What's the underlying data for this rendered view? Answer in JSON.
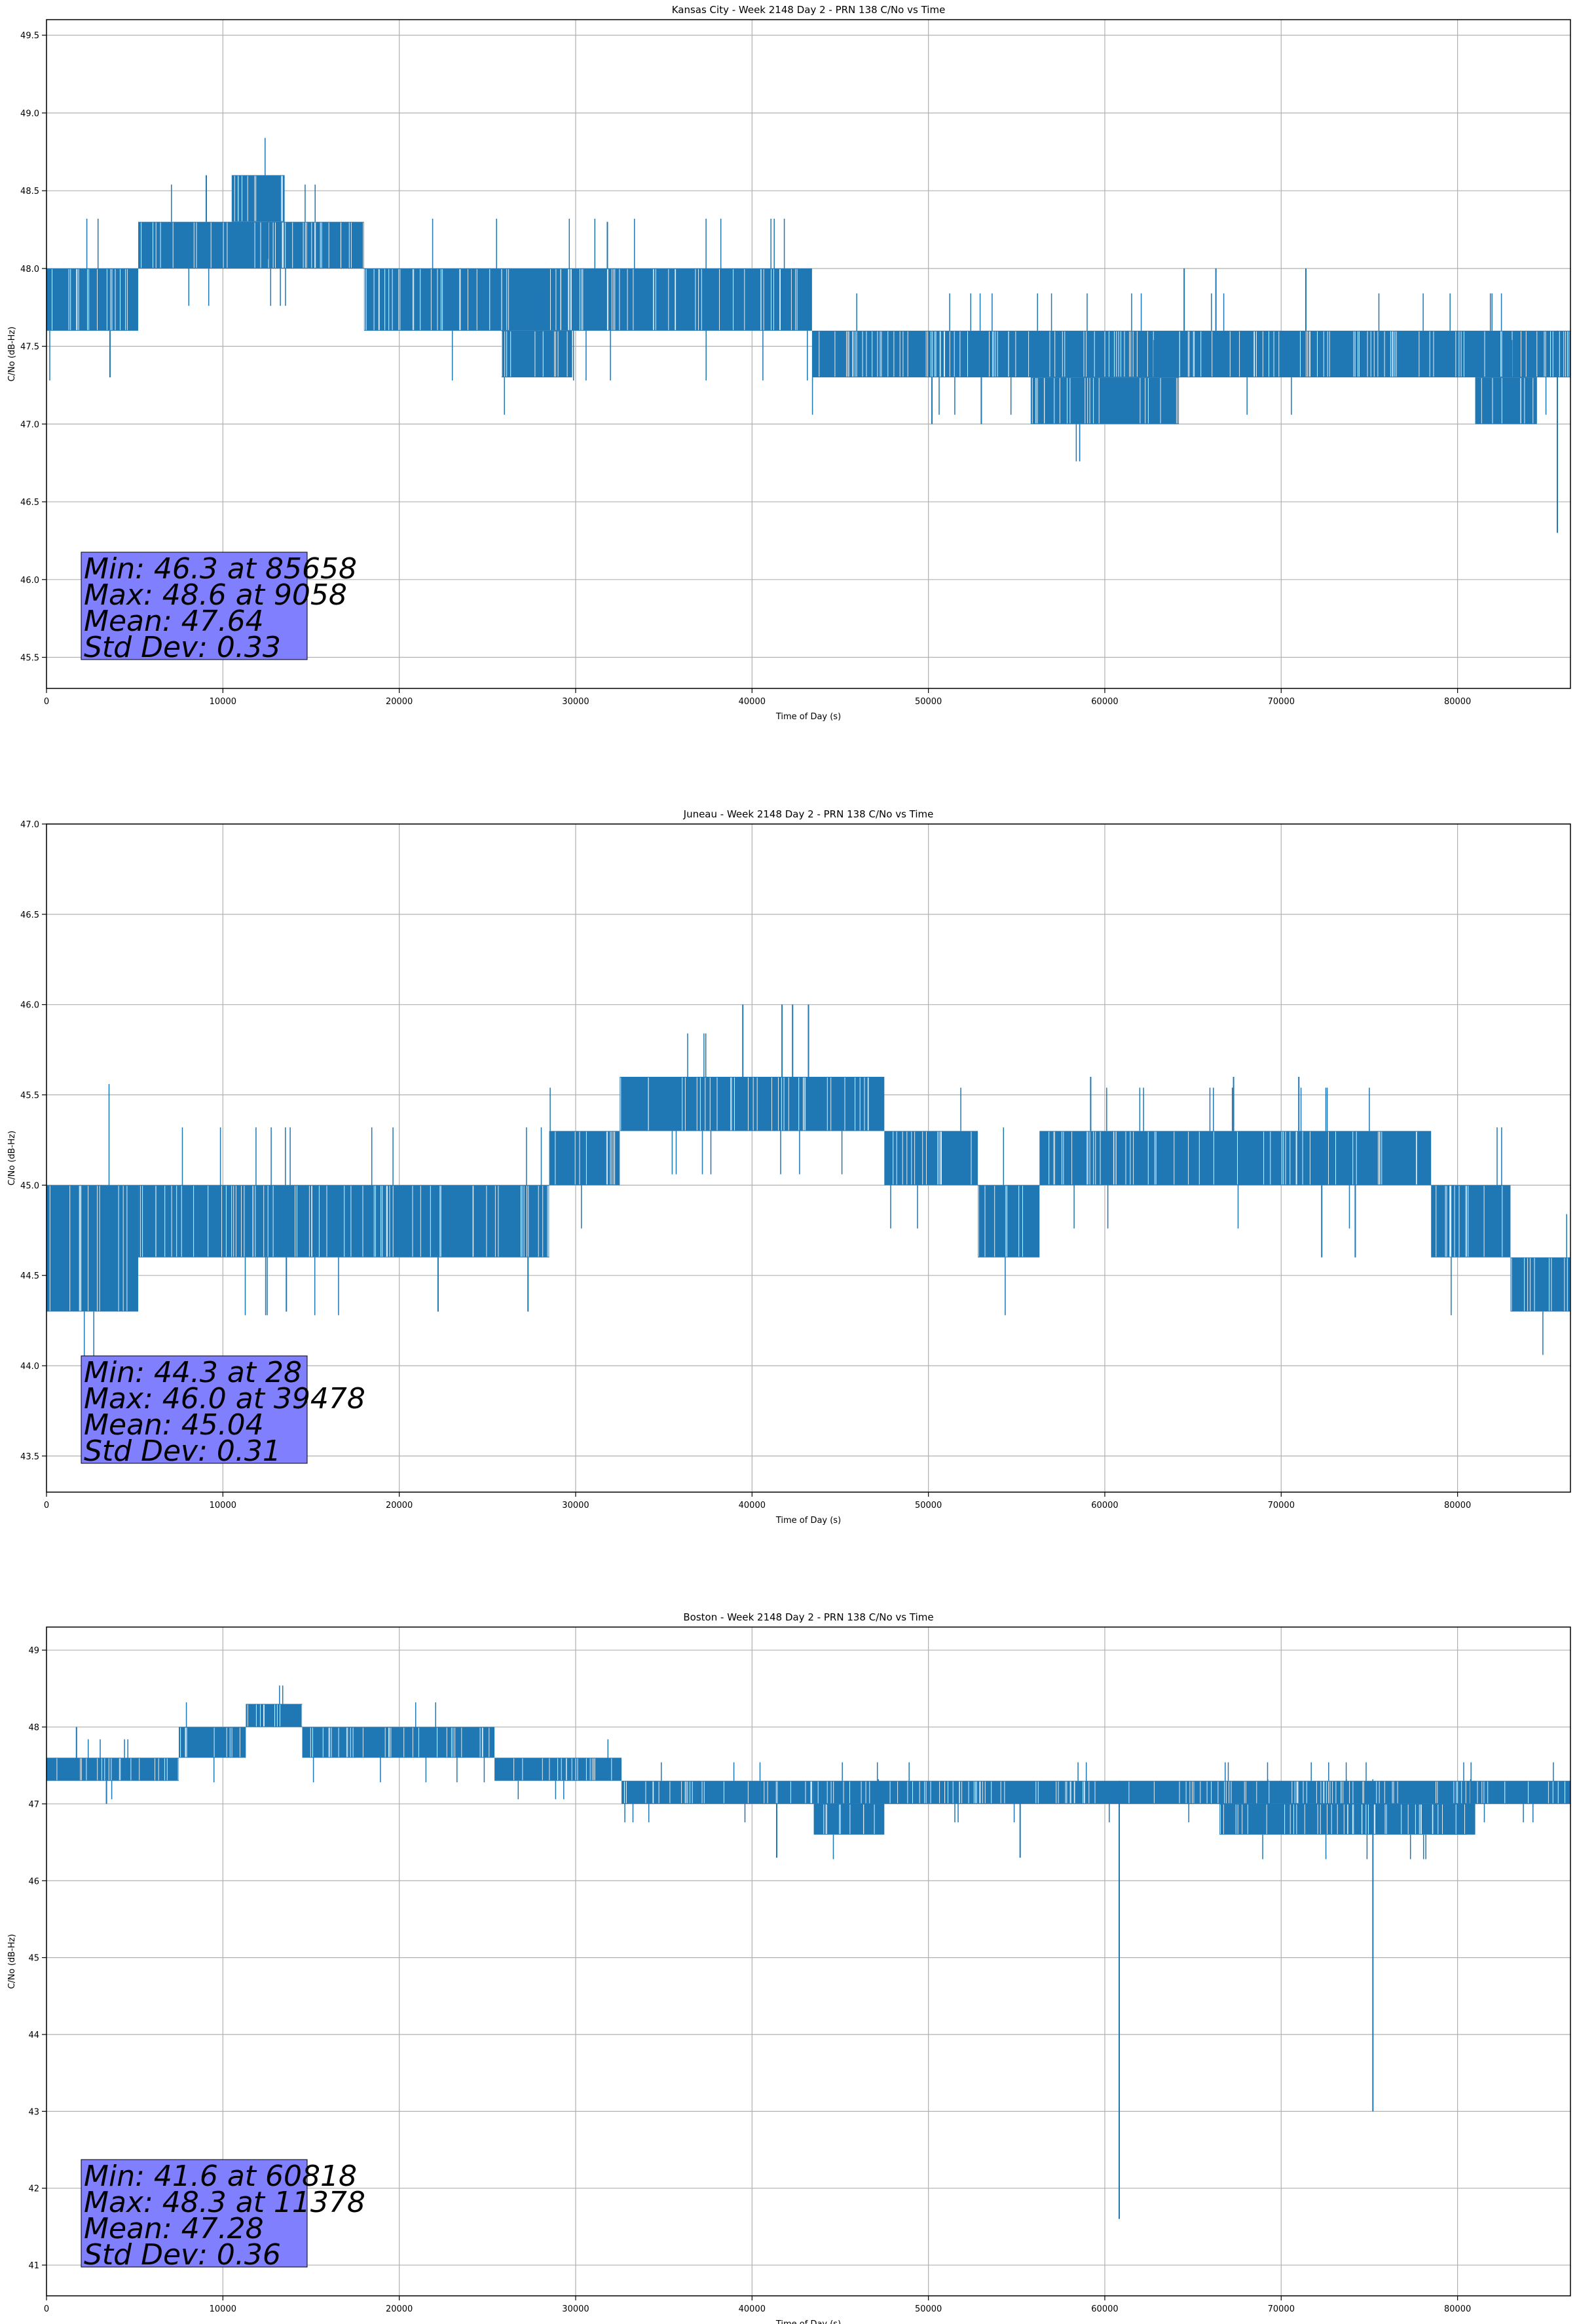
{
  "colors": {
    "series": "#1f77b4",
    "grid": "#b0b0b0",
    "stat_box": "#8080ff",
    "background": "#ffffff"
  },
  "chart_data": [
    {
      "type": "line",
      "title": "Kansas City - Week 2148 Day 2 - PRN 138 C/No vs Time",
      "xlabel": "Time of Day (s)",
      "ylabel": "C/No (dB-Hz)",
      "xlim": [
        0,
        86400
      ],
      "ylim": [
        45.3,
        49.6
      ],
      "xticks": [
        0,
        10000,
        20000,
        30000,
        40000,
        50000,
        60000,
        70000,
        80000
      ],
      "yticks": [
        45.5,
        46.0,
        46.5,
        47.0,
        47.5,
        48.0,
        48.5,
        49.0,
        49.5
      ],
      "ytick_format": 1,
      "grid": true,
      "series": [
        {
          "bands": [
            {
              "x0": 0,
              "x1": 5200,
              "lo": 47.6,
              "hi": 48.0
            },
            {
              "x0": 5200,
              "x1": 18000,
              "lo": 48.0,
              "hi": 48.3
            },
            {
              "x0": 10500,
              "x1": 13500,
              "lo": 48.3,
              "hi": 48.6
            },
            {
              "x0": 18000,
              "x1": 43400,
              "lo": 47.6,
              "hi": 48.0
            },
            {
              "x0": 25800,
              "x1": 29800,
              "lo": 47.3,
              "hi": 47.6
            },
            {
              "x0": 43400,
              "x1": 86400,
              "lo": 47.3,
              "hi": 47.6
            },
            {
              "x0": 55800,
              "x1": 64200,
              "lo": 47.0,
              "hi": 47.3
            },
            {
              "x0": 81000,
              "x1": 84500,
              "lo": 47.0,
              "hi": 47.3
            }
          ],
          "spikes": [
            {
              "x": 85658,
              "lo": 46.3,
              "hi": 47.6
            },
            {
              "x": 9058,
              "lo": 48.3,
              "hi": 48.6
            },
            {
              "x": 31800,
              "lo": 48.0,
              "hi": 48.3
            },
            {
              "x": 3600,
              "lo": 47.3,
              "hi": 47.6
            },
            {
              "x": 50200,
              "lo": 47.0,
              "hi": 47.3
            },
            {
              "x": 53000,
              "lo": 47.0,
              "hi": 47.3
            },
            {
              "x": 64500,
              "lo": 47.6,
              "hi": 48.0
            },
            {
              "x": 66300,
              "lo": 47.6,
              "hi": 48.0
            },
            {
              "x": 71400,
              "lo": 47.6,
              "hi": 48.0
            }
          ]
        }
      ],
      "stats": {
        "lines": [
          "Min: 46.3 at 85658",
          "Max: 48.6 at 9058",
          "Mean: 47.64",
          "Std Dev: 0.33"
        ]
      }
    },
    {
      "type": "line",
      "title": "Juneau - Week 2148 Day 2 - PRN 138 C/No vs Time",
      "xlabel": "Time of Day (s)",
      "ylabel": "C/No (dB-Hz)",
      "xlim": [
        0,
        86400
      ],
      "ylim": [
        43.3,
        47.0
      ],
      "xticks": [
        0,
        10000,
        20000,
        30000,
        40000,
        50000,
        60000,
        70000,
        80000
      ],
      "yticks": [
        43.5,
        44.0,
        44.5,
        45.0,
        45.5,
        46.0,
        46.5,
        47.0
      ],
      "ytick_format": 1,
      "grid": true,
      "series": [
        {
          "bands": [
            {
              "x0": 0,
              "x1": 5200,
              "lo": 44.3,
              "hi": 45.0
            },
            {
              "x0": 5200,
              "x1": 28500,
              "lo": 44.6,
              "hi": 45.0
            },
            {
              "x0": 28500,
              "x1": 32500,
              "lo": 45.0,
              "hi": 45.3
            },
            {
              "x0": 32500,
              "x1": 47500,
              "lo": 45.3,
              "hi": 45.6
            },
            {
              "x0": 47500,
              "x1": 52800,
              "lo": 45.0,
              "hi": 45.3
            },
            {
              "x0": 52800,
              "x1": 56300,
              "lo": 44.6,
              "hi": 45.0
            },
            {
              "x0": 56300,
              "x1": 78500,
              "lo": 45.0,
              "hi": 45.3
            },
            {
              "x0": 78500,
              "x1": 83000,
              "lo": 44.6,
              "hi": 45.0
            },
            {
              "x0": 83000,
              "x1": 86400,
              "lo": 44.3,
              "hi": 44.6
            }
          ],
          "spikes": [
            {
              "x": 39478,
              "lo": 45.6,
              "hi": 46.0
            },
            {
              "x": 41700,
              "lo": 45.6,
              "hi": 46.0
            },
            {
              "x": 42300,
              "lo": 45.6,
              "hi": 46.0
            },
            {
              "x": 43200,
              "lo": 45.6,
              "hi": 46.0
            },
            {
              "x": 13600,
              "lo": 44.3,
              "hi": 44.6
            },
            {
              "x": 22200,
              "lo": 44.3,
              "hi": 44.6
            },
            {
              "x": 27300,
              "lo": 44.3,
              "hi": 44.6
            },
            {
              "x": 59200,
              "lo": 45.3,
              "hi": 45.6
            },
            {
              "x": 67300,
              "lo": 45.3,
              "hi": 45.6
            },
            {
              "x": 71000,
              "lo": 45.3,
              "hi": 45.6
            },
            {
              "x": 72300,
              "lo": 44.6,
              "hi": 45.0
            },
            {
              "x": 74200,
              "lo": 44.6,
              "hi": 45.0
            }
          ]
        }
      ],
      "stats": {
        "lines": [
          "Min: 44.3 at 28",
          "Max: 46.0 at 39478",
          "Mean: 45.04",
          "Std Dev: 0.31"
        ]
      }
    },
    {
      "type": "line",
      "title": "Boston - Week 2148 Day 2 - PRN 138 C/No vs Time",
      "xlabel": "Time of Day (s)",
      "ylabel": "C/No (dB-Hz)",
      "xlim": [
        0,
        86400
      ],
      "ylim": [
        40.6,
        49.3
      ],
      "xticks": [
        0,
        10000,
        20000,
        30000,
        40000,
        50000,
        60000,
        70000,
        80000
      ],
      "yticks": [
        41,
        42,
        43,
        44,
        45,
        46,
        47,
        48,
        49
      ],
      "ytick_format": 0,
      "grid": true,
      "series": [
        {
          "bands": [
            {
              "x0": 0,
              "x1": 7500,
              "lo": 47.3,
              "hi": 47.6
            },
            {
              "x0": 7500,
              "x1": 11300,
              "lo": 47.6,
              "hi": 48.0
            },
            {
              "x0": 11300,
              "x1": 14500,
              "lo": 48.0,
              "hi": 48.3
            },
            {
              "x0": 14500,
              "x1": 25400,
              "lo": 47.6,
              "hi": 48.0
            },
            {
              "x0": 25400,
              "x1": 32600,
              "lo": 47.3,
              "hi": 47.6
            },
            {
              "x0": 32600,
              "x1": 43500,
              "lo": 47.0,
              "hi": 47.3
            },
            {
              "x0": 43500,
              "x1": 86400,
              "lo": 47.0,
              "hi": 47.3
            },
            {
              "x0": 43500,
              "x1": 47500,
              "lo": 46.6,
              "hi": 47.0
            },
            {
              "x0": 66500,
              "x1": 80500,
              "lo": 46.6,
              "hi": 47.0
            },
            {
              "x0": 78500,
              "x1": 81000,
              "lo": 46.6,
              "hi": 47.0
            }
          ],
          "spikes": [
            {
              "x": 60818,
              "lo": 41.6,
              "hi": 47.3
            },
            {
              "x": 75200,
              "lo": 43.0,
              "hi": 47.0
            },
            {
              "x": 41400,
              "lo": 46.3,
              "hi": 47.0
            },
            {
              "x": 55200,
              "lo": 46.3,
              "hi": 47.0
            },
            {
              "x": 1700,
              "lo": 47.6,
              "hi": 48.0
            },
            {
              "x": 3400,
              "lo": 47.0,
              "hi": 47.3
            },
            {
              "x": 13000,
              "lo": 48.3,
              "hi": 48.3
            }
          ]
        }
      ],
      "stats": {
        "lines": [
          "Min: 41.6 at 60818",
          "Max: 48.3 at 11378",
          "Mean: 47.28",
          "Std Dev: 0.36"
        ]
      }
    }
  ]
}
